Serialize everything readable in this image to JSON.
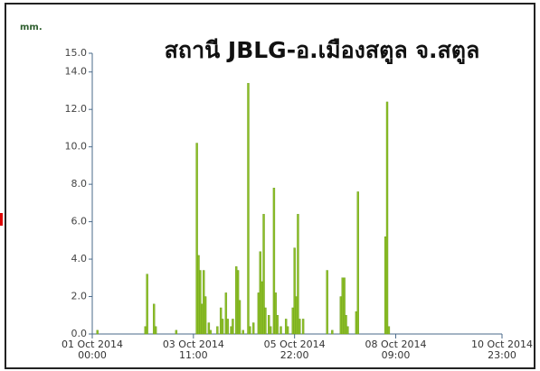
{
  "chart_data": {
    "type": "bar",
    "title": "สถานี JBLG-อ.เมืองสตูล จ.สตูล",
    "y_axis_label": "mm.",
    "color": "#8cbf26",
    "x": [
      "2014-10-01T03:00",
      "2014-10-02T07:00",
      "2014-10-02T08:00",
      "2014-10-02T12:00",
      "2014-10-02T13:00",
      "2014-10-03T01:00",
      "2014-10-03T13:00",
      "2014-10-03T14:00",
      "2014-10-03T15:00",
      "2014-10-03T16:00",
      "2014-10-03T17:00",
      "2014-10-03T18:00",
      "2014-10-03T20:00",
      "2014-10-03T21:00",
      "2014-10-04T01:00",
      "2014-10-04T03:00",
      "2014-10-04T04:00",
      "2014-10-04T06:00",
      "2014-10-04T07:00",
      "2014-10-04T09:00",
      "2014-10-04T10:00",
      "2014-10-04T12:00",
      "2014-10-04T13:00",
      "2014-10-04T14:00",
      "2014-10-04T16:00",
      "2014-10-04T19:00",
      "2014-10-04T20:00",
      "2014-10-04T22:00",
      "2014-10-05T01:00",
      "2014-10-05T02:00",
      "2014-10-05T03:00",
      "2014-10-05T04:00",
      "2014-10-05T05:00",
      "2014-10-05T07:00",
      "2014-10-05T08:00",
      "2014-10-05T10:00",
      "2014-10-05T11:00",
      "2014-10-05T12:00",
      "2014-10-05T14:00",
      "2014-10-05T17:00",
      "2014-10-05T18:00",
      "2014-10-05T21:00",
      "2014-10-05T22:00",
      "2014-10-05T23:00",
      "2014-10-06T00:00",
      "2014-10-06T01:00",
      "2014-10-06T03:00",
      "2014-10-06T17:00",
      "2014-10-06T20:00",
      "2014-10-07T01:00",
      "2014-10-07T02:00",
      "2014-10-07T03:00",
      "2014-10-07T04:00",
      "2014-10-07T05:00",
      "2014-10-07T10:00",
      "2014-10-07T11:00",
      "2014-10-08T03:00",
      "2014-10-08T04:00",
      "2014-10-08T05:00"
    ],
    "values": [
      0.2,
      0.4,
      3.2,
      1.6,
      0.4,
      0.2,
      10.2,
      4.2,
      3.4,
      1.6,
      3.4,
      2.0,
      0.6,
      0.2,
      0.4,
      1.4,
      0.8,
      2.2,
      0.8,
      0.4,
      0.8,
      3.6,
      3.4,
      1.8,
      0.2,
      13.4,
      0.4,
      0.6,
      2.2,
      4.4,
      2.8,
      6.4,
      1.4,
      1.0,
      0.4,
      7.8,
      2.2,
      1.0,
      0.4,
      0.8,
      0.4,
      1.4,
      4.6,
      2.0,
      6.4,
      0.8,
      0.8,
      3.4,
      0.2,
      2.0,
      3.0,
      3.0,
      1.0,
      0.4,
      1.2,
      7.6,
      5.2,
      12.4,
      0.4
    ],
    "xlim": [
      "2014-10-01T00:00",
      "2014-10-10T23:00"
    ],
    "xticks": [
      {
        "value": "2014-10-01T00:00",
        "label": "01 Oct 2014\n00:00"
      },
      {
        "value": "2014-10-03T11:00",
        "label": "03 Oct 2014\n11:00"
      },
      {
        "value": "2014-10-05T22:00",
        "label": "05 Oct 2014\n22:00"
      },
      {
        "value": "2014-10-08T09:00",
        "label": "08 Oct 2014\n09:00"
      },
      {
        "value": "2014-10-10T23:00",
        "label": "10 Oct 2014\n23:00"
      }
    ],
    "ylim": [
      0,
      15
    ],
    "yticks": [
      {
        "value": 0,
        "label": "0.0"
      },
      {
        "value": 2,
        "label": "2.0"
      },
      {
        "value": 4,
        "label": "4.0"
      },
      {
        "value": 6,
        "label": "6.0"
      },
      {
        "value": 8,
        "label": "8.0"
      },
      {
        "value": 10,
        "label": "10.0"
      },
      {
        "value": 12,
        "label": "12.0"
      },
      {
        "value": 14,
        "label": "14.0"
      },
      {
        "value": 15,
        "label": "15.0"
      }
    ]
  }
}
